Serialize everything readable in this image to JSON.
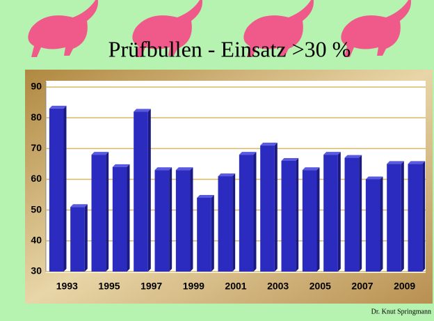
{
  "chart_data": {
    "type": "bar",
    "title": "Prüfbullen - Einsatz >30 %",
    "categories": [
      "1993",
      null,
      "1995",
      null,
      "1997",
      null,
      "1999",
      null,
      "2001",
      null,
      "2003",
      null,
      "2005",
      null,
      "2007",
      null,
      "2009",
      null
    ],
    "values": [
      83,
      51,
      68,
      64,
      82,
      63,
      63,
      54,
      61,
      68,
      71,
      66,
      63,
      68,
      67,
      60,
      65,
      65
    ],
    "color": "#2b2bbf",
    "ylim": [
      30,
      90
    ],
    "yticks": [
      30,
      40,
      50,
      60,
      70,
      80,
      90
    ],
    "grid": true
  },
  "footer": "Dr. Knut Springmann"
}
